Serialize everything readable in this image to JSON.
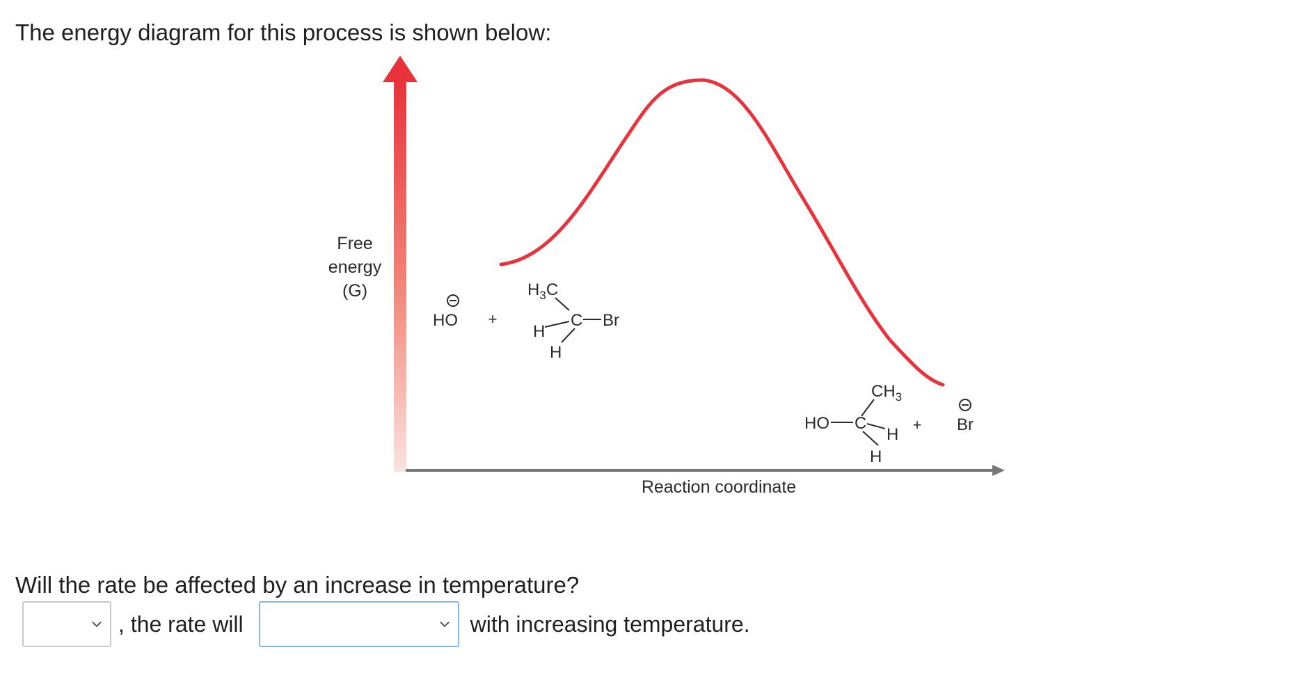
{
  "intro_text": "The energy diagram for this process is shown below:",
  "diagram": {
    "y_axis_label": [
      "Free",
      "energy",
      "(G)"
    ],
    "x_axis_label": "Reaction coordinate",
    "reactants": {
      "hydroxide": "HO",
      "plus": "+",
      "methyl": "H3C",
      "carbon": "C",
      "bromine": "Br",
      "h_left": "H",
      "h_bottom": "H"
    },
    "products": {
      "methyl": "CH3",
      "hydroxyl": "HO",
      "carbon": "C",
      "h_right": "H",
      "h_bottom": "H",
      "plus": "+",
      "bromide": "Br"
    },
    "colors": {
      "curve": "#e8323c",
      "axis_arrow": "#e8323c",
      "x_axis": "#777777"
    }
  },
  "question_text": "Will the rate be affected by an increase in temperature?",
  "answer": {
    "select1_value": "",
    "middle_text": ", the rate will",
    "select2_value": "",
    "end_text": "with increasing temperature."
  }
}
